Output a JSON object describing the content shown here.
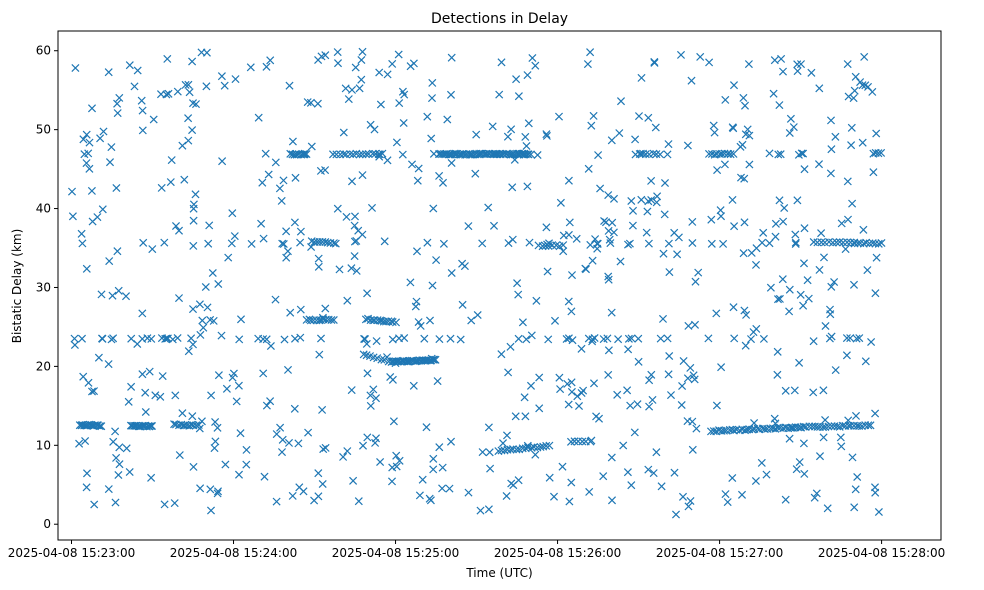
{
  "chart_data": {
    "type": "scatter",
    "title": "Detections in Delay",
    "xlabel": "Time (UTC)",
    "ylabel": "Bistatic Delay (km)",
    "x_unit": "seconds after 2025-04-08 15:23:00 UTC",
    "xlim": [
      -5,
      322
    ],
    "ylim": [
      -2,
      62.5
    ],
    "xticks": [
      {
        "value": 0,
        "label": "2025-04-08 15:23:00"
      },
      {
        "value": 60,
        "label": "2025-04-08 15:24:00"
      },
      {
        "value": 120,
        "label": "2025-04-08 15:25:00"
      },
      {
        "value": 180,
        "label": "2025-04-08 15:26:00"
      },
      {
        "value": 240,
        "label": "2025-04-08 15:27:00"
      },
      {
        "value": 300,
        "label": "2025-04-08 15:28:00"
      }
    ],
    "yticks": [
      0,
      10,
      20,
      30,
      40,
      50,
      60
    ],
    "grid": false,
    "marker": "x",
    "color": "#1f77b4",
    "tracks": [
      {
        "t_start": 3,
        "t_end": 11,
        "delay_start": 12.6,
        "delay_end": 12.5,
        "count": 16
      },
      {
        "t_start": 22,
        "t_end": 30,
        "delay_start": 12.5,
        "delay_end": 12.4,
        "count": 16
      },
      {
        "t_start": 38,
        "t_end": 47,
        "delay_start": 12.6,
        "delay_end": 12.5,
        "count": 12
      },
      {
        "t_start": 81,
        "t_end": 87,
        "delay_start": 46.9,
        "delay_end": 46.9,
        "count": 10
      },
      {
        "t_start": 87,
        "t_end": 97,
        "delay_start": 25.9,
        "delay_end": 25.9,
        "count": 12
      },
      {
        "t_start": 89,
        "t_end": 98,
        "delay_start": 35.8,
        "delay_end": 35.6,
        "count": 10
      },
      {
        "t_start": 97,
        "t_end": 115,
        "delay_start": 46.9,
        "delay_end": 46.9,
        "count": 16
      },
      {
        "t_start": 109,
        "t_end": 120,
        "delay_start": 26.0,
        "delay_end": 25.6,
        "count": 14
      },
      {
        "t_start": 108,
        "t_end": 120,
        "delay_start": 21.5,
        "delay_end": 20.4,
        "count": 10
      },
      {
        "t_start": 119,
        "t_end": 135,
        "delay_start": 20.6,
        "delay_end": 20.8,
        "count": 30
      },
      {
        "t_start": 136,
        "t_end": 170,
        "delay_start": 46.9,
        "delay_end": 46.9,
        "count": 60
      },
      {
        "t_start": 158,
        "t_end": 177,
        "delay_start": 9.3,
        "delay_end": 9.9,
        "count": 18
      },
      {
        "t_start": 173,
        "t_end": 182,
        "delay_start": 35.3,
        "delay_end": 35.3,
        "count": 8
      },
      {
        "t_start": 185,
        "t_end": 192,
        "delay_start": 10.5,
        "delay_end": 10.5,
        "count": 6
      },
      {
        "t_start": 209,
        "t_end": 218,
        "delay_start": 46.9,
        "delay_end": 46.9,
        "count": 8
      },
      {
        "t_start": 236,
        "t_end": 245,
        "delay_start": 46.9,
        "delay_end": 46.9,
        "count": 10
      },
      {
        "t_start": 237,
        "t_end": 270,
        "delay_start": 11.8,
        "delay_end": 12.3,
        "count": 36
      },
      {
        "t_start": 270,
        "t_end": 296,
        "delay_start": 12.3,
        "delay_end": 12.5,
        "count": 26
      },
      {
        "t_start": 275,
        "t_end": 290,
        "delay_start": 35.7,
        "delay_end": 35.7,
        "count": 12
      },
      {
        "t_start": 290,
        "t_end": 300,
        "delay_start": 35.6,
        "delay_end": 35.6,
        "count": 10
      },
      {
        "t_start": 297,
        "t_end": 300,
        "delay_start": 47.0,
        "delay_end": 47.0,
        "count": 4
      }
    ],
    "horizontal_lines": [
      {
        "delay": 23.5,
        "count": 55
      },
      {
        "delay": 46.9,
        "count": 20
      },
      {
        "delay": 35.6,
        "count": 25
      }
    ],
    "background_clutter": {
      "t_range": [
        0,
        300
      ],
      "delay_range": [
        1,
        60
      ],
      "count": 700
    }
  }
}
